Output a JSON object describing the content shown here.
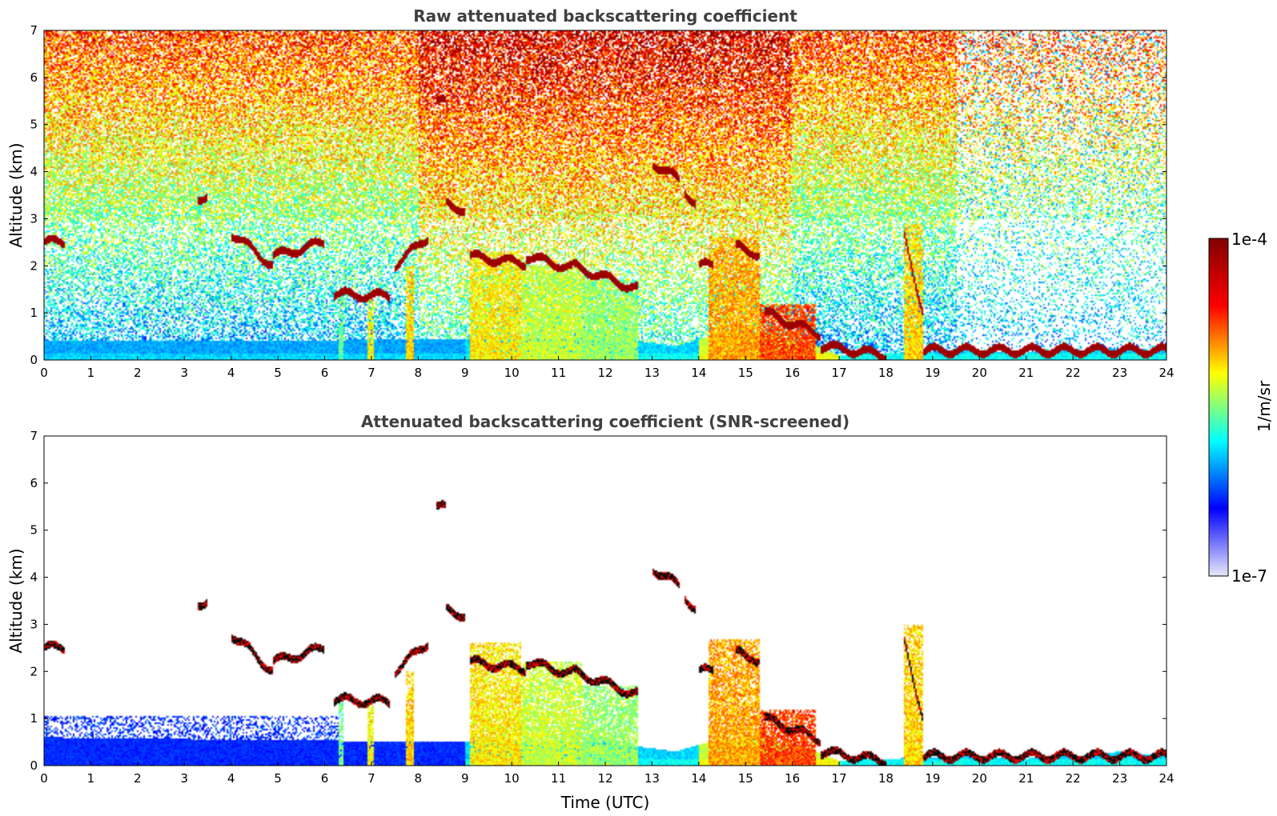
{
  "chart_data": [
    {
      "type": "heatmap",
      "title": "Raw attenuated backscattering coefficient",
      "xlabel": "",
      "ylabel": "Altitude (km)",
      "xlim": [
        0,
        24
      ],
      "ylim": [
        0,
        7
      ],
      "xticks": [
        "0",
        "1",
        "2",
        "3",
        "4",
        "5",
        "6",
        "7",
        "8",
        "9",
        "10",
        "11",
        "12",
        "13",
        "14",
        "15",
        "16",
        "17",
        "18",
        "19",
        "20",
        "21",
        "22",
        "23",
        "24"
      ],
      "yticks": [
        "0",
        "1",
        "2",
        "3",
        "4",
        "5",
        "6",
        "7"
      ],
      "colorscale": "jet-log",
      "noise": "strong",
      "boundary_layer": [
        [
          0,
          0.4
        ],
        [
          4,
          0.4
        ],
        [
          9,
          0.45
        ],
        [
          12,
          0.5
        ],
        [
          13.5,
          0.3
        ],
        [
          14.2,
          0.5
        ],
        [
          15.3,
          0.6
        ],
        [
          16.5,
          0.3
        ],
        [
          17,
          0.1
        ],
        [
          19.5,
          0.2
        ],
        [
          21,
          0.15
        ],
        [
          22,
          0.2
        ],
        [
          23,
          0.25
        ],
        [
          24,
          0.2
        ]
      ],
      "aerosol_plumes": [
        {
          "x": [
            6.3,
            6.4
          ],
          "ytop": 1.4,
          "level": 0.45
        },
        {
          "x": [
            6.9,
            7.05
          ],
          "ytop": 1.3,
          "level": 0.6
        },
        {
          "x": [
            7.75,
            7.9
          ],
          "ytop": 2.0,
          "level": 0.65
        },
        {
          "x": [
            9.1,
            10.2
          ],
          "ytop": 2.3,
          "level": 0.62
        },
        {
          "x": [
            10.2,
            11.5
          ],
          "ytop": 2.0,
          "level": 0.55
        },
        {
          "x": [
            11.5,
            12.7
          ],
          "ytop": 1.7,
          "level": 0.5
        },
        {
          "x": [
            14.2,
            15.3
          ],
          "ytop": 2.6,
          "level": 0.7
        },
        {
          "x": [
            15.3,
            16.5
          ],
          "ytop": 1.2,
          "level": 0.8
        },
        {
          "x": [
            18.4,
            18.8
          ],
          "ytop": 2.9,
          "level": 0.65
        }
      ],
      "cloud_layers": [
        {
          "x": [
            0,
            0.45
          ],
          "y": [
            2.5,
            2.5
          ]
        },
        {
          "x": [
            3.3,
            3.5
          ],
          "y": [
            3.45,
            3.45
          ]
        },
        {
          "x": [
            4.0,
            4.9
          ],
          "y": [
            2.7,
            2.0
          ]
        },
        {
          "x": [
            4.9,
            6.0
          ],
          "y": [
            2.2,
            2.5
          ]
        },
        {
          "x": [
            6.2,
            7.4
          ],
          "y": [
            1.4,
            1.35
          ]
        },
        {
          "x": [
            7.5,
            8.2
          ],
          "y": [
            2.0,
            2.6
          ]
        },
        {
          "x": [
            8.4,
            8.6
          ],
          "y": [
            5.5,
            5.45
          ]
        },
        {
          "x": [
            8.6,
            9.0
          ],
          "y": [
            3.3,
            3.2
          ]
        },
        {
          "x": [
            9.1,
            10.3
          ],
          "y": [
            2.2,
            2.05
          ]
        },
        {
          "x": [
            10.3,
            11.3
          ],
          "y": [
            2.2,
            1.95
          ]
        },
        {
          "x": [
            11.3,
            12.7
          ],
          "y": [
            2.0,
            1.5
          ]
        },
        {
          "x": [
            13.0,
            13.6
          ],
          "y": [
            4.2,
            3.8
          ]
        },
        {
          "x": [
            13.7,
            13.95
          ],
          "y": [
            3.6,
            3.3
          ]
        },
        {
          "x": [
            14.0,
            14.3
          ],
          "y": [
            2.0,
            2.0
          ]
        },
        {
          "x": [
            14.8,
            15.3
          ],
          "y": [
            2.4,
            2.25
          ]
        },
        {
          "x": [
            15.4,
            16.6
          ],
          "y": [
            1.0,
            0.55
          ]
        },
        {
          "x": [
            16.6,
            18.0
          ],
          "y": [
            0.3,
            0.1
          ]
        },
        {
          "x": [
            18.4,
            18.8
          ],
          "y": [
            2.6,
            1.0
          ]
        },
        {
          "x": [
            18.8,
            24.0
          ],
          "y": [
            0.2,
            0.2
          ]
        }
      ]
    },
    {
      "type": "heatmap",
      "title": "Attenuated backscattering coefficient (SNR-screened)",
      "xlabel": "Time (UTC)",
      "ylabel": "Altitude (km)",
      "xlim": [
        0,
        24
      ],
      "ylim": [
        0,
        7
      ],
      "xticks": [
        "0",
        "1",
        "2",
        "3",
        "4",
        "5",
        "6",
        "7",
        "8",
        "9",
        "10",
        "11",
        "12",
        "13",
        "14",
        "15",
        "16",
        "17",
        "18",
        "19",
        "20",
        "21",
        "22",
        "23",
        "24"
      ],
      "yticks": [
        "0",
        "1",
        "2",
        "3",
        "4",
        "5",
        "6",
        "7"
      ],
      "colorscale": "jet-log",
      "noise": "screened",
      "boundary_layer": [
        [
          0,
          0.6
        ],
        [
          4,
          0.55
        ],
        [
          9,
          0.5
        ],
        [
          12,
          0.5
        ],
        [
          13.5,
          0.3
        ],
        [
          14.2,
          0.5
        ],
        [
          15.3,
          0.6
        ],
        [
          16.5,
          0.3
        ],
        [
          17,
          0.1
        ],
        [
          19.5,
          0.2
        ],
        [
          21,
          0.15
        ],
        [
          22,
          0.2
        ],
        [
          23,
          0.3
        ],
        [
          24,
          0.2
        ]
      ],
      "aerosol_plumes": [
        {
          "x": [
            6.3,
            6.4
          ],
          "ytop": 1.4,
          "level": 0.45
        },
        {
          "x": [
            6.9,
            7.05
          ],
          "ytop": 1.3,
          "level": 0.6
        },
        {
          "x": [
            7.75,
            7.9
          ],
          "ytop": 2.0,
          "level": 0.65
        },
        {
          "x": [
            9.1,
            10.2
          ],
          "ytop": 2.6,
          "level": 0.62
        },
        {
          "x": [
            10.2,
            11.5
          ],
          "ytop": 2.2,
          "level": 0.55
        },
        {
          "x": [
            11.5,
            12.7
          ],
          "ytop": 1.7,
          "level": 0.5
        },
        {
          "x": [
            14.2,
            15.3
          ],
          "ytop": 2.7,
          "level": 0.7
        },
        {
          "x": [
            15.3,
            16.5
          ],
          "ytop": 1.2,
          "level": 0.8
        },
        {
          "x": [
            18.4,
            18.8
          ],
          "ytop": 3.0,
          "level": 0.65
        }
      ],
      "cloud_layers": [
        {
          "x": [
            0,
            0.45
          ],
          "y": [
            2.5,
            2.5
          ]
        },
        {
          "x": [
            3.3,
            3.5
          ],
          "y": [
            3.45,
            3.45
          ]
        },
        {
          "x": [
            4.0,
            4.9
          ],
          "y": [
            2.8,
            2.0
          ]
        },
        {
          "x": [
            4.9,
            6.0
          ],
          "y": [
            2.2,
            2.5
          ]
        },
        {
          "x": [
            6.2,
            7.4
          ],
          "y": [
            1.4,
            1.35
          ]
        },
        {
          "x": [
            7.5,
            8.2
          ],
          "y": [
            2.0,
            2.6
          ]
        },
        {
          "x": [
            8.4,
            8.6
          ],
          "y": [
            5.5,
            5.45
          ]
        },
        {
          "x": [
            8.6,
            9.0
          ],
          "y": [
            3.3,
            3.2
          ]
        },
        {
          "x": [
            9.1,
            10.3
          ],
          "y": [
            2.2,
            2.05
          ]
        },
        {
          "x": [
            10.3,
            11.3
          ],
          "y": [
            2.2,
            1.95
          ]
        },
        {
          "x": [
            11.3,
            12.7
          ],
          "y": [
            2.0,
            1.5
          ]
        },
        {
          "x": [
            13.0,
            13.6
          ],
          "y": [
            4.2,
            3.8
          ]
        },
        {
          "x": [
            13.7,
            13.95
          ],
          "y": [
            3.6,
            3.3
          ]
        },
        {
          "x": [
            14.0,
            14.3
          ],
          "y": [
            2.0,
            2.0
          ]
        },
        {
          "x": [
            14.8,
            15.3
          ],
          "y": [
            2.4,
            2.25
          ]
        },
        {
          "x": [
            15.4,
            16.6
          ],
          "y": [
            1.0,
            0.55
          ]
        },
        {
          "x": [
            16.6,
            18.0
          ],
          "y": [
            0.3,
            0.1
          ]
        },
        {
          "x": [
            18.4,
            18.8
          ],
          "y": [
            2.6,
            1.0
          ]
        },
        {
          "x": [
            18.8,
            24.0
          ],
          "y": [
            0.2,
            0.2
          ]
        }
      ]
    }
  ],
  "colorbar": {
    "label": "1/m/sr",
    "max_label": "1e-4",
    "min_label": "1e-7",
    "colors": [
      "#e8e8f8",
      "#0000ff",
      "#00ffff",
      "#ffff00",
      "#ff0000",
      "#800000"
    ]
  }
}
